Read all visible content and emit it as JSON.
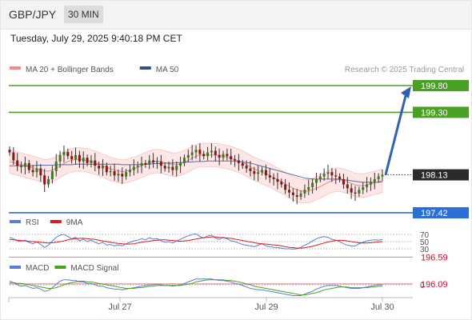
{
  "header": {
    "symbol": "GBP/JPY",
    "timeframe": "30 MIN"
  },
  "timestamp": "Tuesday, July 29, 2025 9:40:18 PM CET",
  "credit": "Research © 2025 Trading Central",
  "legend_main": [
    {
      "label": "MA 20 + Bollinger Bands",
      "color": "#f08a8a"
    },
    {
      "label": "MA 50",
      "color": "#2d4f8e"
    }
  ],
  "legend_rsi": [
    {
      "label": "RSI",
      "color": "#5b7fd6"
    },
    {
      "label": "9MA",
      "color": "#d62020"
    }
  ],
  "legend_macd": [
    {
      "label": "MACD",
      "color": "#5b7fd6"
    },
    {
      "label": "MACD Signal",
      "color": "#4aa024"
    }
  ],
  "chart_data": {
    "type": "candlestick",
    "x_ticks": [
      "Jul 27",
      "Jul 29",
      "Jul 30"
    ],
    "last_price": {
      "value": 198.13,
      "label": "198.13"
    },
    "levels": [
      {
        "value": 199.8,
        "label": "199.80",
        "kind": "target",
        "color": "#4aa024"
      },
      {
        "value": 199.3,
        "label": "199.30",
        "kind": "target",
        "color": "#4aa024"
      },
      {
        "value": 197.42,
        "label": "197.42",
        "kind": "pivot",
        "color": "#2a6fd6"
      },
      {
        "value": 196.59,
        "label": "196.59",
        "kind": "support",
        "color": "#c8102e"
      },
      {
        "value": 196.09,
        "label": "196.09",
        "kind": "support",
        "color": "#c8102e"
      }
    ],
    "forecast": {
      "from": 198.13,
      "to": 199.8,
      "direction": "up"
    },
    "candles_close": [
      198.55,
      198.4,
      198.3,
      198.28,
      198.35,
      198.22,
      198.18,
      198.25,
      198.12,
      197.95,
      198.05,
      198.2,
      198.38,
      198.5,
      198.56,
      198.48,
      198.42,
      198.5,
      198.38,
      198.45,
      198.35,
      198.4,
      198.3,
      198.25,
      198.3,
      198.18,
      198.2,
      198.12,
      198.15,
      198.1,
      198.18,
      198.22,
      198.28,
      198.3,
      198.35,
      198.32,
      198.4,
      198.36,
      198.38,
      198.3,
      198.25,
      198.28,
      198.22,
      198.3,
      198.35,
      198.45,
      198.5,
      198.55,
      198.6,
      198.52,
      198.48,
      198.55,
      198.58,
      198.5,
      198.45,
      198.52,
      198.48,
      198.42,
      198.4,
      198.35,
      198.3,
      198.25,
      198.2,
      198.15,
      198.18,
      198.22,
      198.12,
      198.08,
      198.05,
      198.0,
      197.95,
      197.85,
      197.8,
      197.75,
      197.72,
      197.78,
      197.85,
      197.9,
      197.98,
      198.05,
      198.1,
      198.15,
      198.18,
      198.12,
      198.1,
      198.05,
      197.95,
      197.88,
      197.8,
      197.78,
      197.85,
      197.9,
      197.95,
      198.0,
      198.05,
      198.1,
      198.13
    ],
    "ma20": [
      198.38,
      198.36,
      198.34,
      198.32,
      198.3,
      198.28,
      198.26,
      198.24,
      198.22,
      198.2,
      198.2,
      198.22,
      198.25,
      198.3,
      198.34,
      198.38,
      198.4,
      198.42,
      198.42,
      198.41,
      198.4,
      198.38,
      198.36,
      198.33,
      198.3,
      198.27,
      198.24,
      198.22,
      198.2,
      198.19,
      198.2,
      198.22,
      198.24,
      198.27,
      198.3,
      198.33,
      198.36,
      198.38,
      198.39,
      198.38,
      198.36,
      198.34,
      198.32,
      198.32,
      198.34,
      198.37,
      198.4,
      198.44,
      198.48,
      198.5,
      198.5,
      198.5,
      198.5,
      198.5,
      198.49,
      198.48,
      198.46,
      198.44,
      198.42,
      198.39,
      198.36,
      198.32,
      198.28,
      198.24,
      198.21,
      198.18,
      198.15,
      198.12,
      198.08,
      198.04,
      198.0,
      197.96,
      197.92,
      197.88,
      197.85,
      197.83,
      197.82,
      197.83,
      197.85,
      197.88,
      197.91,
      197.95,
      197.99,
      198.02,
      198.04,
      198.04,
      198.02,
      198.0,
      197.97,
      197.94,
      197.93,
      197.93,
      197.94,
      197.96,
      197.98,
      198.0,
      198.02
    ],
    "ma50": [
      198.3,
      198.3,
      198.3,
      198.3,
      198.3,
      198.3,
      198.3,
      198.31,
      198.31,
      198.31,
      198.31,
      198.31,
      198.32,
      198.32,
      198.32,
      198.32,
      198.32,
      198.33,
      198.33,
      198.33,
      198.33,
      198.33,
      198.33,
      198.33,
      198.33,
      198.33,
      198.33,
      198.33,
      198.33,
      198.32,
      198.32,
      198.32,
      198.32,
      198.32,
      198.33,
      198.33,
      198.33,
      198.34,
      198.34,
      198.34,
      198.35,
      198.35,
      198.35,
      198.36,
      198.36,
      198.36,
      198.37,
      198.37,
      198.38,
      198.38,
      198.38,
      198.39,
      198.39,
      198.39,
      198.39,
      198.39,
      198.39,
      198.39,
      198.39,
      198.38,
      198.37,
      198.36,
      198.35,
      198.33,
      198.31,
      198.29,
      198.27,
      198.25,
      198.23,
      198.21,
      198.19,
      198.17,
      198.15,
      198.13,
      198.11,
      198.09,
      198.07,
      198.06,
      198.05,
      198.05,
      198.05,
      198.05,
      198.05,
      198.05,
      198.05,
      198.05,
      198.04,
      198.03,
      198.02,
      198.01,
      198.0,
      197.99,
      197.99,
      197.99,
      197.99,
      197.99,
      198.0
    ],
    "rsi": {
      "ticks": [
        70,
        50,
        30
      ],
      "rsi": [
        62,
        58,
        52,
        50,
        54,
        48,
        44,
        49,
        42,
        34,
        40,
        52,
        62,
        68,
        70,
        64,
        58,
        62,
        52,
        57,
        50,
        54,
        48,
        44,
        48,
        40,
        42,
        38,
        41,
        38,
        44,
        48,
        52,
        54,
        58,
        55,
        61,
        57,
        58,
        52,
        48,
        50,
        46,
        52,
        56,
        62,
        66,
        70,
        72,
        64,
        60,
        66,
        68,
        60,
        56,
        62,
        58,
        52,
        50,
        46,
        42,
        40,
        38,
        36,
        40,
        44,
        38,
        36,
        34,
        33,
        32,
        30,
        30,
        29,
        30,
        34,
        40,
        45,
        52,
        58,
        62,
        64,
        62,
        56,
        54,
        50,
        44,
        40,
        38,
        38,
        44,
        48,
        52,
        54,
        55,
        54,
        56
      ],
      "ma9": [
        56,
        55,
        54,
        53,
        52,
        51,
        50,
        49,
        48,
        47,
        46,
        47,
        48,
        50,
        52,
        55,
        57,
        58,
        59,
        59,
        58,
        57,
        56,
        54,
        52,
        50,
        48,
        46,
        45,
        44,
        43,
        43,
        44,
        46,
        48,
        50,
        51,
        53,
        54,
        55,
        55,
        54,
        53,
        52,
        51,
        52,
        53,
        55,
        57,
        59,
        61,
        62,
        63,
        63,
        62,
        61,
        60,
        59,
        57,
        55,
        53,
        51,
        49,
        47,
        45,
        44,
        43,
        42,
        41,
        40,
        38,
        36,
        34,
        33,
        32,
        32,
        33,
        35,
        37,
        40,
        43,
        46,
        49,
        51,
        53,
        54,
        53,
        52,
        50,
        48,
        47,
        46,
        46,
        47,
        48,
        49,
        50
      ]
    },
    "macd": {
      "zero_label": "0",
      "macd": [
        0.05,
        0.03,
        0.0,
        -0.02,
        -0.01,
        -0.03,
        -0.05,
        -0.04,
        -0.06,
        -0.09,
        -0.08,
        -0.04,
        0.01,
        0.05,
        0.07,
        0.07,
        0.06,
        0.06,
        0.04,
        0.04,
        0.02,
        0.02,
        0.0,
        -0.02,
        -0.02,
        -0.04,
        -0.05,
        -0.06,
        -0.06,
        -0.07,
        -0.06,
        -0.05,
        -0.04,
        -0.03,
        -0.02,
        -0.01,
        0.0,
        0.0,
        0.01,
        0.0,
        -0.01,
        -0.01,
        -0.02,
        -0.01,
        0.0,
        0.02,
        0.04,
        0.06,
        0.08,
        0.08,
        0.08,
        0.08,
        0.08,
        0.07,
        0.06,
        0.06,
        0.05,
        0.04,
        0.02,
        0.01,
        -0.01,
        -0.03,
        -0.05,
        -0.06,
        -0.07,
        -0.07,
        -0.08,
        -0.09,
        -0.1,
        -0.11,
        -0.12,
        -0.13,
        -0.14,
        -0.15,
        -0.15,
        -0.15,
        -0.13,
        -0.11,
        -0.09,
        -0.06,
        -0.04,
        -0.02,
        -0.01,
        -0.01,
        -0.01,
        -0.02,
        -0.03,
        -0.04,
        -0.05,
        -0.05,
        -0.05,
        -0.04,
        -0.03,
        -0.02,
        -0.01,
        0.0,
        0.0
      ],
      "signal": [
        0.03,
        0.03,
        0.02,
        0.02,
        0.01,
        0.0,
        -0.01,
        -0.02,
        -0.03,
        -0.04,
        -0.05,
        -0.05,
        -0.04,
        -0.02,
        0.0,
        0.02,
        0.03,
        0.04,
        0.05,
        0.05,
        0.04,
        0.04,
        0.03,
        0.02,
        0.01,
        0.0,
        -0.01,
        -0.02,
        -0.03,
        -0.04,
        -0.05,
        -0.05,
        -0.05,
        -0.04,
        -0.04,
        -0.03,
        -0.02,
        -0.02,
        -0.01,
        -0.01,
        -0.01,
        -0.01,
        -0.01,
        -0.01,
        -0.01,
        0.0,
        0.01,
        0.02,
        0.04,
        0.05,
        0.06,
        0.07,
        0.07,
        0.07,
        0.07,
        0.07,
        0.06,
        0.06,
        0.05,
        0.04,
        0.03,
        0.01,
        0.0,
        -0.02,
        -0.03,
        -0.04,
        -0.05,
        -0.06,
        -0.07,
        -0.08,
        -0.09,
        -0.1,
        -0.11,
        -0.12,
        -0.13,
        -0.14,
        -0.14,
        -0.13,
        -0.12,
        -0.11,
        -0.09,
        -0.07,
        -0.06,
        -0.05,
        -0.04,
        -0.03,
        -0.03,
        -0.03,
        -0.04,
        -0.04,
        -0.04,
        -0.04,
        -0.04,
        -0.03,
        -0.03,
        -0.02,
        -0.02
      ]
    }
  }
}
